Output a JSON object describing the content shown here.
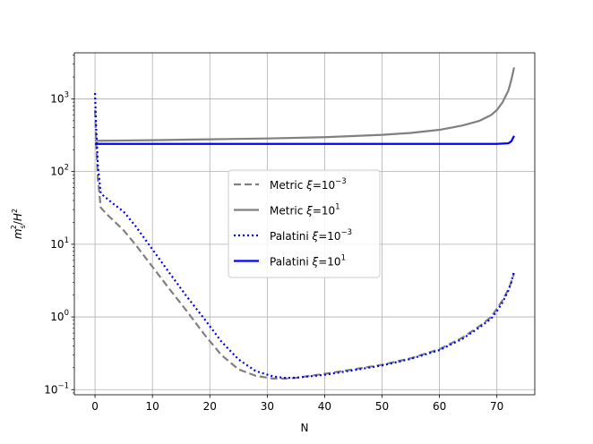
{
  "chart_data": {
    "type": "line",
    "xlabel": "N",
    "ylabel": "m_s^2/H^2",
    "yscale": "log",
    "xlim": [
      -3.6,
      76.6
    ],
    "ylim": [
      0.085,
      4300
    ],
    "grid": true,
    "x_ticks": [
      0,
      10,
      20,
      30,
      40,
      50,
      60,
      70
    ],
    "y_ticks": [
      0.1,
      1,
      10,
      100,
      1000
    ],
    "y_tick_labels": [
      {
        "base": "10",
        "exp": "−1"
      },
      {
        "base": "10",
        "exp": "0"
      },
      {
        "base": "10",
        "exp": "1"
      },
      {
        "base": "10",
        "exp": "2"
      },
      {
        "base": "10",
        "exp": "3"
      }
    ],
    "legend_position": "center",
    "series": [
      {
        "name": "Metric ξ = 10^-3",
        "legend_prefix": "Metric ",
        "legend_exp": "−3",
        "color": "#808080",
        "style": "dashed",
        "x": [
          0,
          0.2,
          0.5,
          1,
          2,
          3,
          5,
          7,
          10,
          13,
          16,
          19,
          22,
          25,
          28,
          31,
          33,
          35,
          40,
          45,
          50,
          55,
          60,
          64,
          67,
          69,
          70,
          71,
          72,
          72.5,
          73
        ],
        "y": [
          700,
          250,
          80,
          32,
          26,
          22,
          15.5,
          10,
          4.9,
          2.4,
          1.2,
          0.58,
          0.3,
          0.19,
          0.155,
          0.142,
          0.142,
          0.145,
          0.165,
          0.19,
          0.22,
          0.27,
          0.36,
          0.52,
          0.75,
          1.0,
          1.3,
          1.7,
          2.4,
          3.0,
          4.0
        ]
      },
      {
        "name": "Metric ξ = 10^1",
        "legend_prefix": "Metric ",
        "legend_exp": "1",
        "color": "#808080",
        "style": "solid",
        "x": [
          0,
          10,
          20,
          30,
          40,
          50,
          55,
          60,
          64,
          67,
          69,
          70,
          71,
          72,
          72.5,
          73
        ],
        "y": [
          265,
          270,
          278,
          285,
          297,
          320,
          340,
          375,
          430,
          500,
          600,
          700,
          900,
          1300,
          1800,
          2700
        ]
      },
      {
        "name": "Palatini ξ = 10^-3",
        "legend_prefix": "Palatini ",
        "legend_exp": "−3",
        "color": "#0000ff",
        "style": "dotted",
        "x": [
          0,
          0.2,
          0.5,
          1,
          2,
          3,
          5,
          7,
          10,
          13,
          16,
          19,
          22,
          25,
          28,
          31,
          33,
          35,
          40,
          45,
          50,
          55,
          60,
          64,
          67,
          69,
          70,
          71,
          72,
          72.5,
          73
        ],
        "y": [
          1200,
          400,
          120,
          50,
          43,
          37,
          28,
          18,
          8.5,
          4.0,
          1.9,
          0.95,
          0.46,
          0.26,
          0.18,
          0.152,
          0.145,
          0.146,
          0.16,
          0.185,
          0.215,
          0.265,
          0.35,
          0.5,
          0.72,
          0.95,
          1.2,
          1.6,
          2.3,
          3.0,
          4.3
        ]
      },
      {
        "name": "Palatini ξ = 10^1",
        "legend_prefix": "Palatini ",
        "legend_exp": "1",
        "color": "#0000ff",
        "style": "solid",
        "x": [
          0,
          10,
          20,
          30,
          40,
          50,
          60,
          65,
          70,
          72,
          72.5,
          73
        ],
        "y": [
          240,
          240,
          240,
          240,
          240,
          240,
          240,
          240,
          240,
          245,
          260,
          310
        ]
      }
    ]
  }
}
